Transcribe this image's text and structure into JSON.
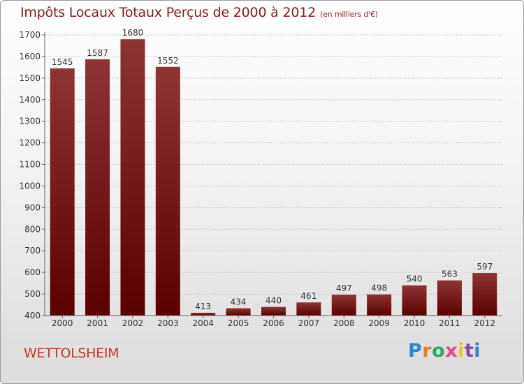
{
  "header": {
    "title": "Impôts Locaux Totaux Perçus de 2000 à 2012",
    "unit": "(en milliers d'€)"
  },
  "footer": {
    "city": "WETTOLSHEIM",
    "brand": "Proxiti"
  },
  "colors": {
    "bar_top": "#8e3434",
    "bar_bottom": "#5a0000",
    "title": "#8b1a1a",
    "city": "#c0392b"
  },
  "chart_data": {
    "type": "bar",
    "title": "Impôts Locaux Totaux Perçus de 2000 à 2012",
    "subtitle": "(en milliers d'€)",
    "categories": [
      "2000",
      "2001",
      "2002",
      "2003",
      "2004",
      "2005",
      "2006",
      "2007",
      "2008",
      "2009",
      "2010",
      "2011",
      "2012"
    ],
    "values": [
      1545,
      1587,
      1680,
      1552,
      413,
      434,
      440,
      461,
      497,
      498,
      540,
      563,
      597
    ],
    "ylim": [
      400,
      1700
    ],
    "yticks": [
      400,
      500,
      600,
      700,
      800,
      900,
      1000,
      1100,
      1200,
      1300,
      1400,
      1500,
      1600,
      1700
    ],
    "grid": true,
    "legend": "none"
  }
}
